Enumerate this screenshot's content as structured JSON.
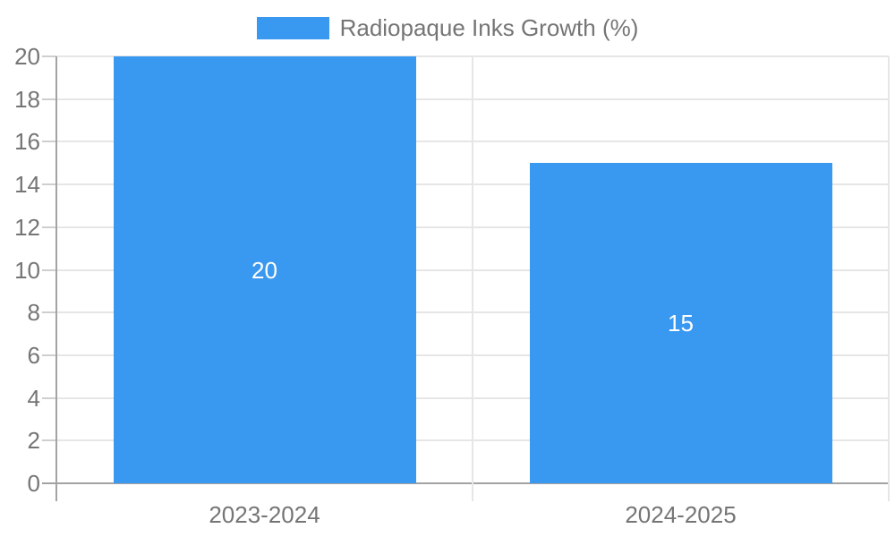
{
  "chart_data": {
    "type": "bar",
    "title": "Radiopaque Inks Growth (%)",
    "legend": "Radiopaque Inks Growth (%)",
    "legend_position": "top-center",
    "categories": [
      "2023-2024",
      "2024-2025"
    ],
    "series": [
      {
        "name": "Radiopaque Inks Growth (%)",
        "values": [
          20,
          15
        ]
      }
    ],
    "value_labels": [
      "20",
      "15"
    ],
    "xlabel": "",
    "ylabel": "",
    "ylim": [
      0,
      20
    ],
    "yticks": [
      0,
      2,
      4,
      6,
      8,
      10,
      12,
      14,
      16,
      18,
      20
    ],
    "grid": true,
    "colors": {
      "bar": "#3999f0",
      "axis_text": "#757575",
      "gridline": "#e6e6e6",
      "tick_dash": "#cfcfcf",
      "axis_line": "#a3a3a3",
      "value_label": "#ffffff",
      "background": "#ffffff"
    }
  }
}
